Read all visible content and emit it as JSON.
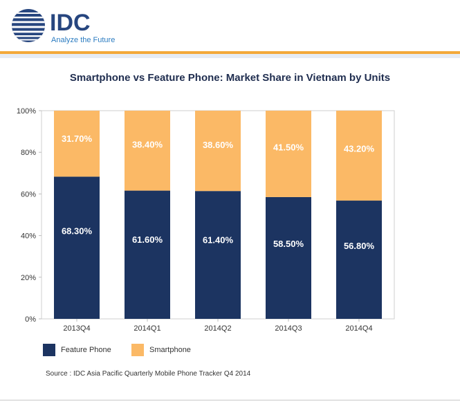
{
  "brand": {
    "name": "IDC",
    "tagline": "Analyze the Future",
    "colors": {
      "navy": "#27467f",
      "accent": "#f3a93a",
      "tagline_blue": "#2b7cc1"
    }
  },
  "source": "Source : IDC Asia Pacific Quarterly Mobile Phone Tracker Q4 2014",
  "chart_data": {
    "type": "bar",
    "stacked": true,
    "title": "Smartphone vs Feature Phone: Market Share in Vietnam by Units",
    "xlabel": "",
    "ylabel": "",
    "categories": [
      "2013Q4",
      "2014Q1",
      "2014Q2",
      "2014Q3",
      "2014Q4"
    ],
    "series": [
      {
        "name": "Feature Phone",
        "color": "#1c3461",
        "values": [
          68.3,
          61.6,
          61.4,
          58.5,
          56.8
        ],
        "labels": [
          "68.30%",
          "61.60%",
          "61.40%",
          "58.50%",
          "56.80%"
        ]
      },
      {
        "name": "Smartphone",
        "color": "#fbb966",
        "values": [
          31.7,
          38.4,
          38.6,
          41.5,
          43.2
        ],
        "labels": [
          "31.70%",
          "38.40%",
          "38.60%",
          "41.50%",
          "43.20%"
        ]
      }
    ],
    "ylim": [
      0,
      100
    ],
    "yticks": [
      0,
      20,
      40,
      60,
      80,
      100
    ],
    "ytick_labels": [
      "0%",
      "20%",
      "40%",
      "60%",
      "80%",
      "100%"
    ],
    "grid": false,
    "legend_position": "bottom-left"
  }
}
